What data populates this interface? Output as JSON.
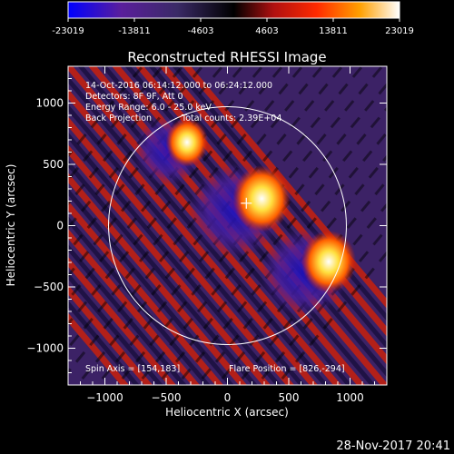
{
  "chart_data": {
    "type": "heatmap",
    "title": "Reconstructed RHESSI Image",
    "xlabel": "Heliocentric X (arcsec)",
    "ylabel": "Heliocentric Y (arcsec)",
    "xlim": [
      -1300,
      1300
    ],
    "ylim": [
      -1300,
      1300
    ],
    "xticks": [
      -1000,
      -500,
      0,
      500,
      1000
    ],
    "yticks": [
      -1000,
      -500,
      0,
      500,
      1000
    ],
    "x_tick_labels": [
      "−1000",
      "−500",
      "0",
      "500",
      "1000"
    ],
    "y_tick_labels": [
      "−1000",
      "−500",
      "0",
      "500",
      "1000"
    ],
    "colorbar": {
      "ticks": [
        -23019,
        -13811,
        -4603,
        4603,
        13811,
        23019
      ],
      "labels": [
        "-23019",
        "-13811",
        "-4603",
        "4603",
        "13811",
        "23019"
      ],
      "colors": [
        "#0000ff",
        "#5a1e9c",
        "#3c2a6e",
        "#000000",
        "#b01010",
        "#ff2a00",
        "#ffa000",
        "#ffffff"
      ]
    },
    "info_lines": [
      "14-Oct-2016 06:14:12.000 to 06:24:12.000",
      "Detectors: 8F 9F, Att 0",
      "Energy Range: 6.0 - 25.0 keV",
      "Back Projection",
      "Total counts: 2.39E+04"
    ],
    "spin_axis": "Spin Axis = [154,183]",
    "flare_position": "Flare Position = [826,-294]",
    "solar_disk": {
      "center": [
        0,
        0
      ],
      "radius_arcsec": 970
    },
    "sources": [
      {
        "x": 280,
        "y": 220,
        "peak": 23019
      },
      {
        "x": 826,
        "y": -294,
        "peak": 21000
      },
      {
        "x": -330,
        "y": 680,
        "peak": 14000
      }
    ],
    "marker": {
      "x": 154,
      "y": 183
    }
  },
  "footer": {
    "date": "28-Nov-2017 20:41"
  }
}
